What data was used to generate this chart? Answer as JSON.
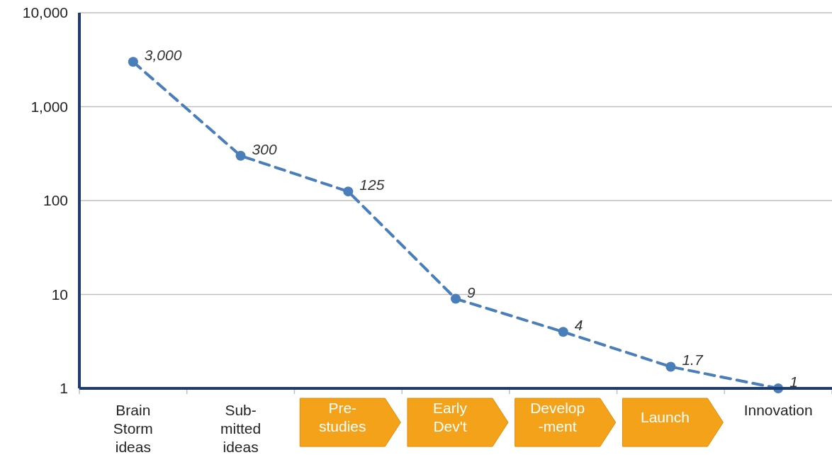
{
  "chart_data": {
    "type": "line",
    "categories": [
      "Brain\nStorm\nideas",
      "Sub-\nmitted\nideas",
      "Pre-\nstudies",
      "Early\nDev't",
      "Develop\n-ment",
      "Launch",
      "Innovation"
    ],
    "series": [
      {
        "color": "#4a7ebb",
        "values": [
          3000,
          300,
          125,
          9,
          4,
          1.7,
          1
        ],
        "value_labels": [
          "3,000",
          "300",
          "125",
          "9",
          "4",
          "1.7",
          "1"
        ]
      }
    ],
    "log": "y",
    "ylim": [
      1,
      10000
    ],
    "yticks": [
      {
        "value": 1,
        "label": "1"
      },
      {
        "value": 10,
        "label": "10"
      },
      {
        "value": 100,
        "label": "100"
      },
      {
        "value": 1000,
        "label": "1,000"
      },
      {
        "value": 10000,
        "label": "10,000"
      }
    ],
    "grid": "y",
    "marker": "circle",
    "line_style": "dashed"
  }
}
